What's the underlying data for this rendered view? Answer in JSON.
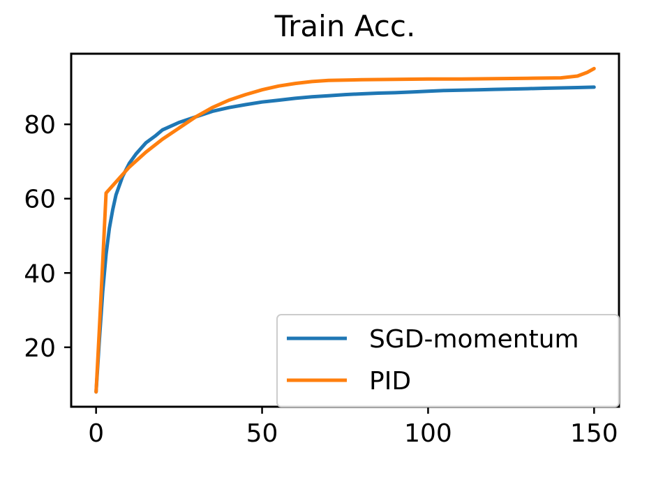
{
  "chart_data": {
    "type": "line",
    "title": "Train Acc.",
    "xlabel": "",
    "ylabel": "",
    "xlim": [
      -7.5,
      157.5
    ],
    "ylim": [
      4,
      99
    ],
    "xticks": [
      0,
      50,
      100,
      150
    ],
    "yticks": [
      20,
      40,
      60,
      80
    ],
    "grid": false,
    "legend_position": "lower-right",
    "series": [
      {
        "name": "SGD-momentum",
        "color": "#1f77b4",
        "x": [
          0,
          1,
          2,
          3,
          4,
          5,
          6,
          8,
          10,
          12,
          15,
          18,
          20,
          25,
          30,
          35,
          40,
          45,
          50,
          55,
          60,
          65,
          70,
          75,
          80,
          85,
          90,
          95,
          100,
          105,
          110,
          115,
          120,
          125,
          130,
          135,
          140,
          145,
          150
        ],
        "y": [
          8,
          22,
          35,
          45,
          52,
          57,
          61,
          66,
          69.5,
          72,
          75,
          77,
          78.5,
          80.5,
          82,
          83.5,
          84.5,
          85.3,
          86,
          86.5,
          87,
          87.4,
          87.7,
          88,
          88.2,
          88.4,
          88.5,
          88.7,
          88.9,
          89.1,
          89.2,
          89.3,
          89.4,
          89.5,
          89.6,
          89.7,
          89.8,
          89.9,
          90
        ]
      },
      {
        "name": "PID",
        "color": "#ff7f0e",
        "x": [
          0,
          1,
          2,
          3,
          5,
          8,
          10,
          15,
          20,
          25,
          30,
          35,
          40,
          45,
          50,
          55,
          60,
          65,
          70,
          80,
          90,
          100,
          110,
          120,
          130,
          140,
          145,
          148,
          150
        ],
        "y": [
          8,
          25,
          43,
          61.5,
          63.5,
          66.5,
          68.5,
          72.5,
          76,
          79,
          82,
          84.5,
          86.5,
          88,
          89.3,
          90.3,
          91,
          91.5,
          91.8,
          92,
          92.1,
          92.2,
          92.2,
          92.3,
          92.4,
          92.5,
          93,
          94,
          95
        ]
      }
    ]
  }
}
